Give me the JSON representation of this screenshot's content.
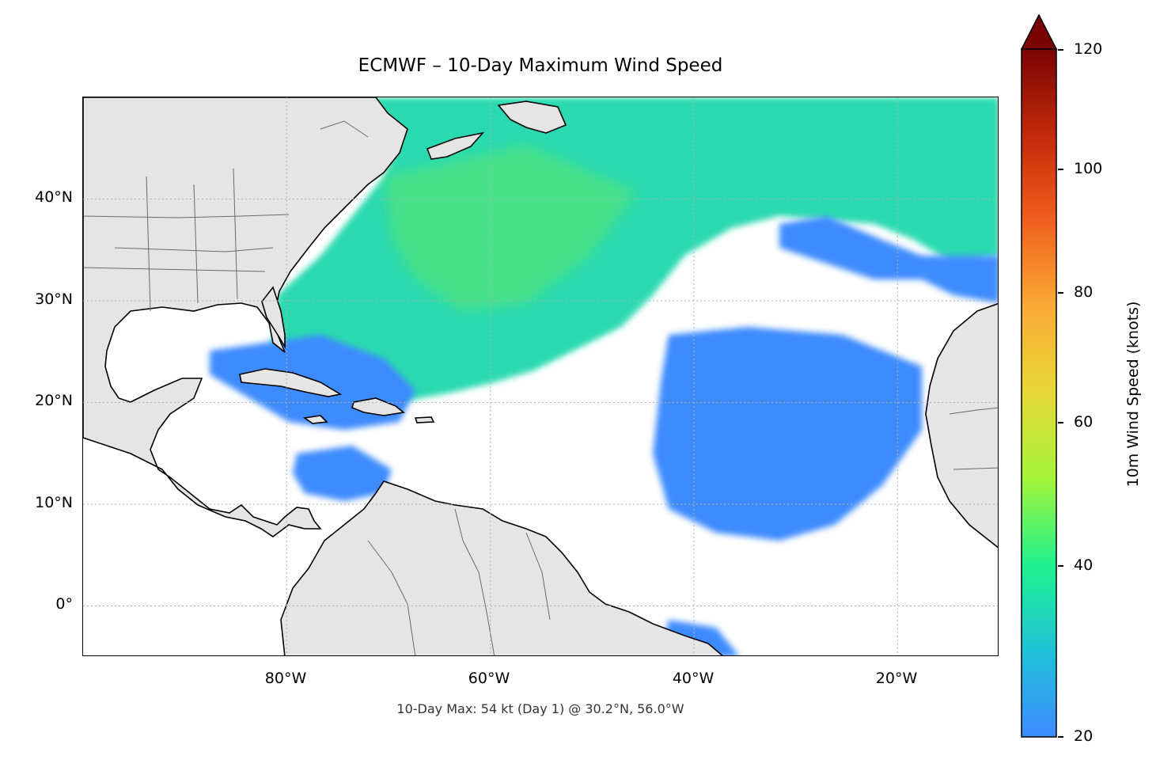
{
  "title": "ECMWF – 10-Day Maximum Wind Speed",
  "footnote": "10-Day Max: 54 kt (Day 1) @ 30.2°N, 56.0°W",
  "map": {
    "lon_range": [
      -100,
      -10
    ],
    "lat_range": [
      -5,
      50
    ],
    "lat_labels": [
      "40°N",
      "30°N",
      "20°N",
      "10°N",
      "0°"
    ],
    "lon_labels": [
      "80°W",
      "60°W",
      "40°W",
      "20°W"
    ],
    "land_color": "#e5e5e5",
    "coast_color": "#000000",
    "border_color": "#6b6b6b",
    "grid_color": "#b0b0b0"
  },
  "colorbar": {
    "label": "10m Wind Speed (knots)",
    "ticks": [
      "120",
      "100",
      "80",
      "60",
      "40",
      "20"
    ],
    "range": [
      20,
      120
    ],
    "extend": "max",
    "colors": [
      "#3d8bff",
      "#1fc2d8",
      "#1ef28f",
      "#a4f43a",
      "#e7d837",
      "#fbab35",
      "#f0601d",
      "#c22a0a",
      "#7a0403"
    ],
    "over_color": "#7a0403"
  }
}
